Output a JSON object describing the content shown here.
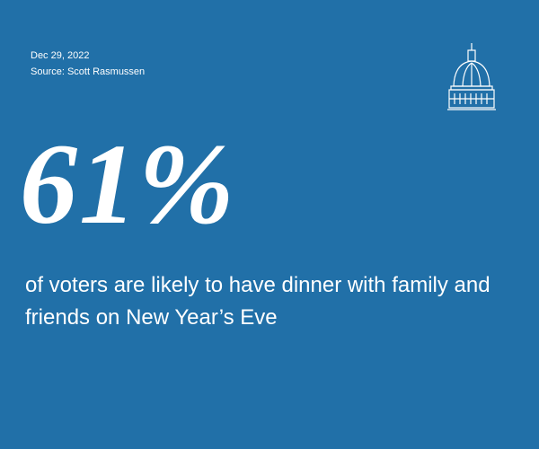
{
  "header": {
    "date": "Dec 29, 2022",
    "source": "Source: Scott Rasmussen"
  },
  "stat": {
    "value": "61%",
    "description": "of voters are likely to have dinner with family and friends on New Year’s Eve"
  }
}
